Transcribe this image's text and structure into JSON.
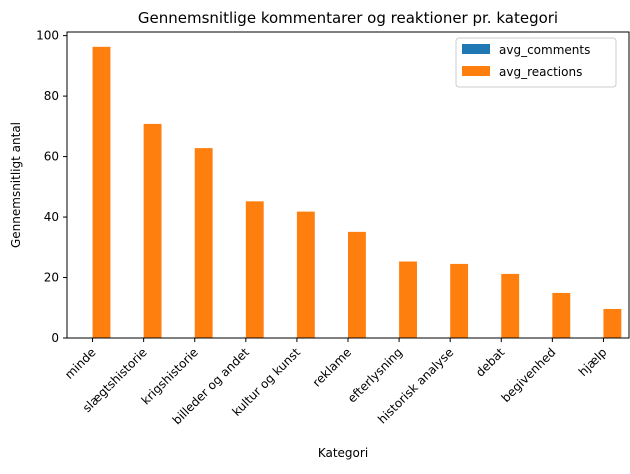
{
  "chart_data": {
    "type": "bar",
    "title": "Gennemsnitlige kommentarer og reaktioner pr. kategori",
    "xlabel": "Kategori",
    "ylabel": "Gennemsnitligt antal",
    "categories": [
      "minde",
      "slægtshistorie",
      "krigshistorie",
      "billeder og andet",
      "kultur og kunst",
      "reklame",
      "efterlysning",
      "historisk analyse",
      "debat",
      "begivenhed",
      "hjælp"
    ],
    "series": [
      {
        "name": "avg_comments",
        "color": "#1f77b4",
        "values": [
          0,
          0,
          0,
          0,
          0,
          0,
          0,
          0,
          0,
          0,
          0
        ]
      },
      {
        "name": "avg_reactions",
        "color": "#ff7f0e",
        "values": [
          96.3,
          70.8,
          62.8,
          45.2,
          41.8,
          35.1,
          25.3,
          24.5,
          21.2,
          14.9,
          9.6
        ]
      }
    ],
    "ylim": [
      0,
      101.2
    ],
    "yticks": [
      0,
      20,
      40,
      60,
      80,
      100
    ],
    "legend_position": "top-right",
    "grid": false
  }
}
